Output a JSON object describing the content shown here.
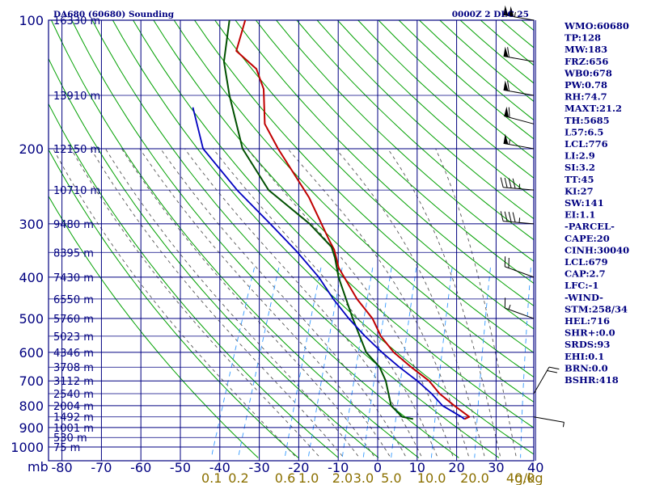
{
  "header": {
    "station_title": "DA680 (60680) Sounding",
    "valid_time": "0000Z  2 DEC 25"
  },
  "colors": {
    "frame": "#000080",
    "dry_adiabat": "#00a000",
    "moist_adiabat": "#555555",
    "mixing_ratio": "#3399ff",
    "temperature": "#c00000",
    "dewpoint": "#005000",
    "parcel": "#0000c0",
    "mixing_label": "#8b7000"
  },
  "chart_data": {
    "type": "skew-t",
    "units": {
      "pressure": "mb",
      "temperature": "C",
      "mixing_ratio": "g/kg"
    },
    "pressure_levels": [
      100,
      200,
      300,
      400,
      500,
      600,
      700,
      800,
      900,
      1000
    ],
    "pressure_unit_label": "mb",
    "temperature_ticks": [
      -80,
      -70,
      -60,
      -50,
      -40,
      -30,
      -20,
      -10,
      0,
      10,
      20,
      30,
      40
    ],
    "mixing_ratio_ticks": [
      0.1,
      0.2,
      0.6,
      1.0,
      2.0,
      3.0,
      5.0,
      10.0,
      20.0,
      40.0
    ],
    "mixing_ratio_labels": [
      "0.1",
      "0.2",
      "0.6",
      "1.0",
      "2.0",
      "3.0",
      "5.0",
      "10.0",
      "20.0",
      "40.0"
    ],
    "mixing_ratio_unit": "g/kg",
    "heights": [
      {
        "p": 100,
        "label": "16330 m"
      },
      {
        "p": 150,
        "label": "13910 m"
      },
      {
        "p": 200,
        "label": "12150 m"
      },
      {
        "p": 250,
        "label": "10710 m"
      },
      {
        "p": 300,
        "label": "9480 m"
      },
      {
        "p": 350,
        "label": "8395 m"
      },
      {
        "p": 400,
        "label": "7430 m"
      },
      {
        "p": 450,
        "label": "6550 m"
      },
      {
        "p": 500,
        "label": "5760 m"
      },
      {
        "p": 550,
        "label": "5023 m"
      },
      {
        "p": 600,
        "label": "4346 m"
      },
      {
        "p": 650,
        "label": "3708 m"
      },
      {
        "p": 700,
        "label": "3112 m"
      },
      {
        "p": 750,
        "label": "2540 m"
      },
      {
        "p": 800,
        "label": "2004 m"
      },
      {
        "p": 850,
        "label": "1492 m"
      },
      {
        "p": 900,
        "label": "1001 m"
      },
      {
        "p": 950,
        "label": "530 m"
      },
      {
        "p": 1000,
        "label": "75 m"
      }
    ],
    "series": [
      {
        "key": "temperature",
        "points": [
          [
            100,
            -79
          ],
          [
            118,
            -78
          ],
          [
            130,
            -71
          ],
          [
            145,
            -67
          ],
          [
            175,
            -63
          ],
          [
            200,
            -57
          ],
          [
            260,
            -44
          ],
          [
            330,
            -34
          ],
          [
            345,
            -32
          ],
          [
            380,
            -29
          ],
          [
            450,
            -21
          ],
          [
            500,
            -15
          ],
          [
            550,
            -11
          ],
          [
            600,
            -6
          ],
          [
            650,
            0
          ],
          [
            700,
            6
          ],
          [
            750,
            10
          ],
          [
            800,
            15
          ],
          [
            850,
            20
          ],
          [
            860,
            19
          ]
        ]
      },
      {
        "key": "dewpoint",
        "points": [
          [
            100,
            -83
          ],
          [
            125,
            -80
          ],
          [
            150,
            -75
          ],
          [
            200,
            -66
          ],
          [
            250,
            -55
          ],
          [
            300,
            -41
          ],
          [
            340,
            -33
          ],
          [
            360,
            -31
          ],
          [
            400,
            -28
          ],
          [
            500,
            -20
          ],
          [
            600,
            -13
          ],
          [
            650,
            -8
          ],
          [
            700,
            -5
          ],
          [
            800,
            -1
          ],
          [
            850,
            3
          ],
          [
            860,
            6
          ]
        ]
      },
      {
        "key": "parcel",
        "points": [
          [
            160,
            -83
          ],
          [
            200,
            -76
          ],
          [
            250,
            -63
          ],
          [
            300,
            -51
          ],
          [
            350,
            -41
          ],
          [
            400,
            -33
          ],
          [
            450,
            -27
          ],
          [
            500,
            -21
          ],
          [
            550,
            -15
          ],
          [
            600,
            -9
          ],
          [
            650,
            -3
          ],
          [
            700,
            3
          ],
          [
            750,
            8
          ],
          [
            800,
            12
          ],
          [
            850,
            18
          ],
          [
            860,
            19
          ]
        ]
      }
    ],
    "wind_barbs": [
      {
        "p": 100,
        "dir": 280,
        "spd": 105
      },
      {
        "p": 125,
        "dir": 280,
        "spd": 60
      },
      {
        "p": 150,
        "dir": 280,
        "spd": 60
      },
      {
        "p": 175,
        "dir": 285,
        "spd": 60
      },
      {
        "p": 200,
        "dir": 280,
        "spd": 55
      },
      {
        "p": 250,
        "dir": 275,
        "spd": 45
      },
      {
        "p": 300,
        "dir": 275,
        "spd": 45
      },
      {
        "p": 400,
        "dir": 290,
        "spd": 20
      },
      {
        "p": 500,
        "dir": 290,
        "spd": 15
      },
      {
        "p": 750,
        "dir": 30,
        "spd": 20
      },
      {
        "p": 850,
        "dir": 100,
        "spd": 5
      }
    ]
  },
  "indices": [
    "WMO:60680",
    "TP:128",
    "MW:183",
    "FRZ:656",
    "WB0:678",
    "PW:0.78",
    "RH:74.7",
    "MAXT:21.2",
    "TH:5685",
    "L57:6.5",
    "LCL:776",
    "LI:2.9",
    "SI:3.2",
    "TT:45",
    "KI:27",
    "SW:141",
    "EI:1.1",
    "-PARCEL-",
    "CAPE:20",
    "CINH:30040",
    "LCL:679",
    "CAP:2.7",
    "LFC:-1",
    "-WIND-",
    "STM:258/34",
    "HEL:716",
    "SHR+:0.0",
    "SRDS:93",
    "EHI:0.1",
    "BRN:0.0",
    "BSHR:418"
  ]
}
